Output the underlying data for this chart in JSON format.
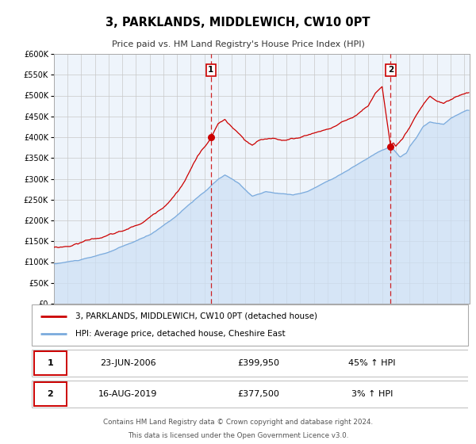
{
  "title": "3, PARKLANDS, MIDDLEWICH, CW10 0PT",
  "subtitle": "Price paid vs. HM Land Registry's House Price Index (HPI)",
  "legend_property": "3, PARKLANDS, MIDDLEWICH, CW10 0PT (detached house)",
  "legend_hpi": "HPI: Average price, detached house, Cheshire East",
  "annotation1_date": "23-JUN-2006",
  "annotation1_price": "£399,950",
  "annotation1_hpi": "45% ↑ HPI",
  "annotation1_year": 2006.48,
  "annotation1_value": 399950,
  "annotation2_date": "16-AUG-2019",
  "annotation2_price": "£377,500",
  "annotation2_hpi": "3% ↑ HPI",
  "annotation2_year": 2019.62,
  "annotation2_value": 377500,
  "footer1": "Contains HM Land Registry data © Crown copyright and database right 2024.",
  "footer2": "This data is licensed under the Open Government Licence v3.0.",
  "ylim": [
    0,
    600000
  ],
  "xlim_start": 1995.0,
  "xlim_end": 2025.4,
  "property_color": "#cc0000",
  "hpi_color": "#7aaadd",
  "hpi_fill_color": "#cce0f5",
  "plot_bg_color": "#eef4fb",
  "grid_color": "#c8c8c8",
  "box_edge_color": "#cc0000",
  "outer_box_color": "#aaaaaa"
}
